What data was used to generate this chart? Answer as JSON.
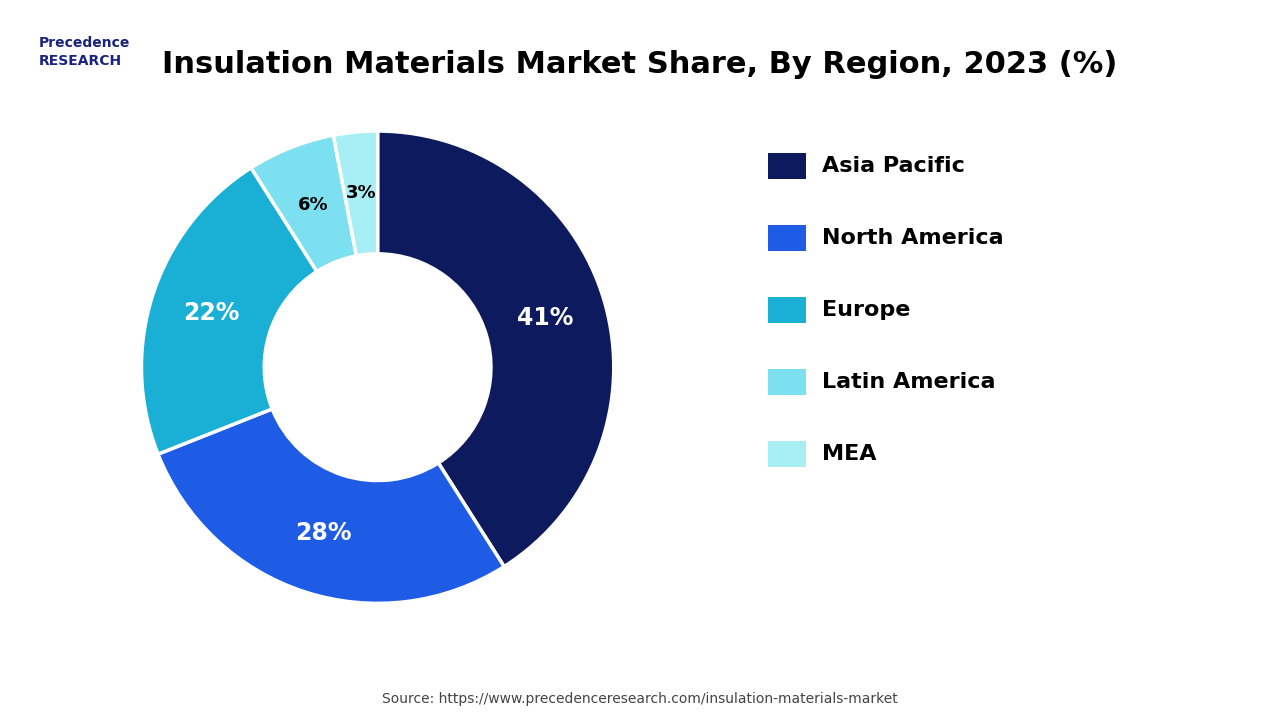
{
  "title": "Insulation Materials Market Share, By Region, 2023 (%)",
  "slices": [
    41,
    28,
    22,
    6,
    3
  ],
  "labels": [
    "Asia Pacific",
    "North America",
    "Europe",
    "Latin America",
    "MEA"
  ],
  "colors": [
    "#0d1b5e",
    "#1e5ce6",
    "#1ab0d6",
    "#7de0f0",
    "#a8eef5"
  ],
  "pct_labels": [
    "41%",
    "28%",
    "22%",
    "6%",
    "3%"
  ],
  "legend_labels": [
    "Asia Pacific",
    "North America",
    "Europe",
    "Latin America",
    "MEA"
  ],
  "source_text": "Source: https://www.precedenceresearch.com/insulation-materials-market",
  "background_color": "#ffffff",
  "title_fontsize": 22,
  "label_fontsize": 17,
  "legend_fontsize": 16
}
